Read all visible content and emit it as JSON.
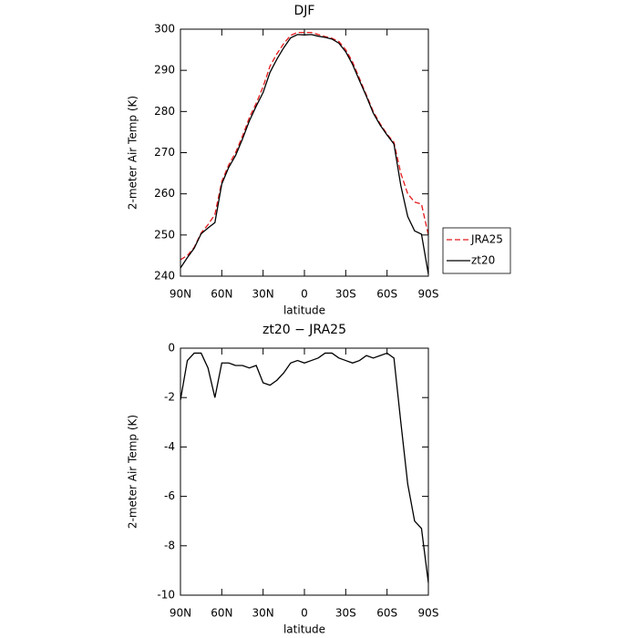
{
  "chart_data": [
    {
      "type": "line",
      "title": "DJF",
      "xlabel": "latitude",
      "ylabel": "2-meter Air Temp (K)",
      "x": [
        90,
        85,
        80,
        75,
        70,
        65,
        60,
        55,
        50,
        45,
        40,
        35,
        30,
        25,
        20,
        15,
        10,
        5,
        0,
        -5,
        -10,
        -15,
        -20,
        -25,
        -30,
        -35,
        -40,
        -45,
        -50,
        -55,
        -60,
        -65,
        -70,
        -75,
        -80,
        -85,
        -90
      ],
      "xlim": [
        90,
        -90
      ],
      "xticks": [
        {
          "value": 90,
          "label": "90N"
        },
        {
          "value": 60,
          "label": "60N"
        },
        {
          "value": 30,
          "label": "30N"
        },
        0,
        {
          "value": -30,
          "label": "30S"
        },
        {
          "value": -60,
          "label": "60S"
        },
        {
          "value": -90,
          "label": "90S"
        }
      ],
      "ylim": [
        240,
        300
      ],
      "yticks": [
        240,
        250,
        260,
        270,
        280,
        290,
        300
      ],
      "legend": "right",
      "series": [
        {
          "name": "JRA25",
          "color": "#e41a1c",
          "dash": true,
          "values": [
            244,
            245,
            247,
            250.5,
            252.5,
            255,
            263,
            267,
            270,
            274,
            278.5,
            282,
            286,
            291,
            294,
            296.5,
            298.5,
            299.2,
            299.2,
            299.2,
            298.7,
            298.2,
            297.8,
            297,
            295,
            292,
            288,
            284,
            280,
            277,
            274.5,
            272.5,
            265,
            260,
            258,
            257.5,
            250
          ]
        },
        {
          "name": "zt20",
          "color": "#000000",
          "dash": false,
          "values": [
            242,
            244.5,
            246.8,
            250.3,
            251.7,
            253,
            262.4,
            266.4,
            269.3,
            273.3,
            277.7,
            281.3,
            284.6,
            289.5,
            292.7,
            295.5,
            297.9,
            298.7,
            298.6,
            298.7,
            298.3,
            298,
            297.6,
            296.6,
            294.5,
            291.4,
            287.5,
            283.7,
            279.6,
            276.7,
            274.3,
            272.1,
            262,
            254.5,
            251,
            250.2,
            240.5
          ]
        }
      ]
    },
    {
      "type": "line",
      "title": "zt20 − JRA25",
      "xlabel": "latitude",
      "ylabel": "2-meter Air Temp (K)",
      "x": [
        90,
        85,
        80,
        75,
        70,
        65,
        60,
        55,
        50,
        45,
        40,
        35,
        30,
        25,
        20,
        15,
        10,
        5,
        0,
        -5,
        -10,
        -15,
        -20,
        -25,
        -30,
        -35,
        -40,
        -45,
        -50,
        -55,
        -60,
        -65,
        -70,
        -75,
        -80,
        -85,
        -90
      ],
      "xlim": [
        90,
        -90
      ],
      "xticks": [
        {
          "value": 90,
          "label": "90N"
        },
        {
          "value": 60,
          "label": "60N"
        },
        {
          "value": 30,
          "label": "30N"
        },
        0,
        {
          "value": -30,
          "label": "30S"
        },
        {
          "value": -60,
          "label": "60S"
        },
        {
          "value": -90,
          "label": "90S"
        }
      ],
      "ylim": [
        -10,
        0
      ],
      "yticks": [
        -10,
        -8,
        -6,
        -4,
        -2,
        0
      ],
      "series": [
        {
          "color": "#000000",
          "dash": false,
          "values": [
            -2.1,
            -0.5,
            -0.2,
            -0.2,
            -0.8,
            -2.0,
            -0.6,
            -0.6,
            -0.7,
            -0.7,
            -0.8,
            -0.7,
            -1.4,
            -1.5,
            -1.3,
            -1.0,
            -0.6,
            -0.5,
            -0.6,
            -0.5,
            -0.4,
            -0.2,
            -0.2,
            -0.4,
            -0.5,
            -0.6,
            -0.5,
            -0.3,
            -0.4,
            -0.3,
            -0.2,
            -0.4,
            -3.0,
            -5.5,
            -7.0,
            -7.3,
            -9.5
          ]
        }
      ]
    }
  ]
}
